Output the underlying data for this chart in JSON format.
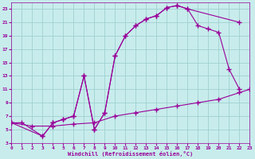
{
  "xlabel": "Windchill (Refroidissement éolien,°C)",
  "background_color": "#c8ecec",
  "line_color": "#990099",
  "xlim": [
    0,
    23
  ],
  "ylim": [
    3,
    24
  ],
  "xticks": [
    0,
    1,
    2,
    3,
    4,
    5,
    6,
    7,
    8,
    9,
    10,
    11,
    12,
    13,
    14,
    15,
    16,
    17,
    18,
    19,
    20,
    21,
    22,
    23
  ],
  "yticks": [
    3,
    5,
    7,
    9,
    11,
    13,
    15,
    17,
    19,
    21,
    23
  ],
  "grid_color": "#a0d0d0",
  "marker": "+",
  "markersize": 4,
  "curve1_x": [
    0,
    1,
    3,
    4,
    5,
    6,
    7,
    8,
    9,
    10,
    11,
    12,
    13,
    14,
    15,
    16,
    17,
    22
  ],
  "curve1_y": [
    6,
    6,
    4,
    6,
    6.5,
    7,
    13,
    5,
    7.5,
    16,
    19,
    20.5,
    21.5,
    22,
    23.2,
    23.5,
    23,
    21
  ],
  "curve2_x": [
    0,
    3,
    4,
    5,
    6,
    7,
    8,
    9,
    10,
    11,
    12,
    13,
    14,
    15,
    16,
    17,
    18,
    19,
    20,
    21,
    22
  ],
  "curve2_y": [
    6,
    4,
    6,
    6.5,
    7,
    13,
    5,
    7.5,
    16,
    19,
    20.5,
    21.5,
    22,
    23.2,
    23.5,
    23,
    20.5,
    20,
    19.5,
    14,
    11
  ],
  "curve3_x": [
    0,
    2,
    4,
    6,
    8,
    10,
    12,
    14,
    16,
    18,
    20,
    22,
    23
  ],
  "curve3_y": [
    6,
    5.5,
    5.5,
    5.8,
    6,
    7,
    7.5,
    8,
    8.5,
    9,
    9.5,
    10.5,
    11
  ]
}
